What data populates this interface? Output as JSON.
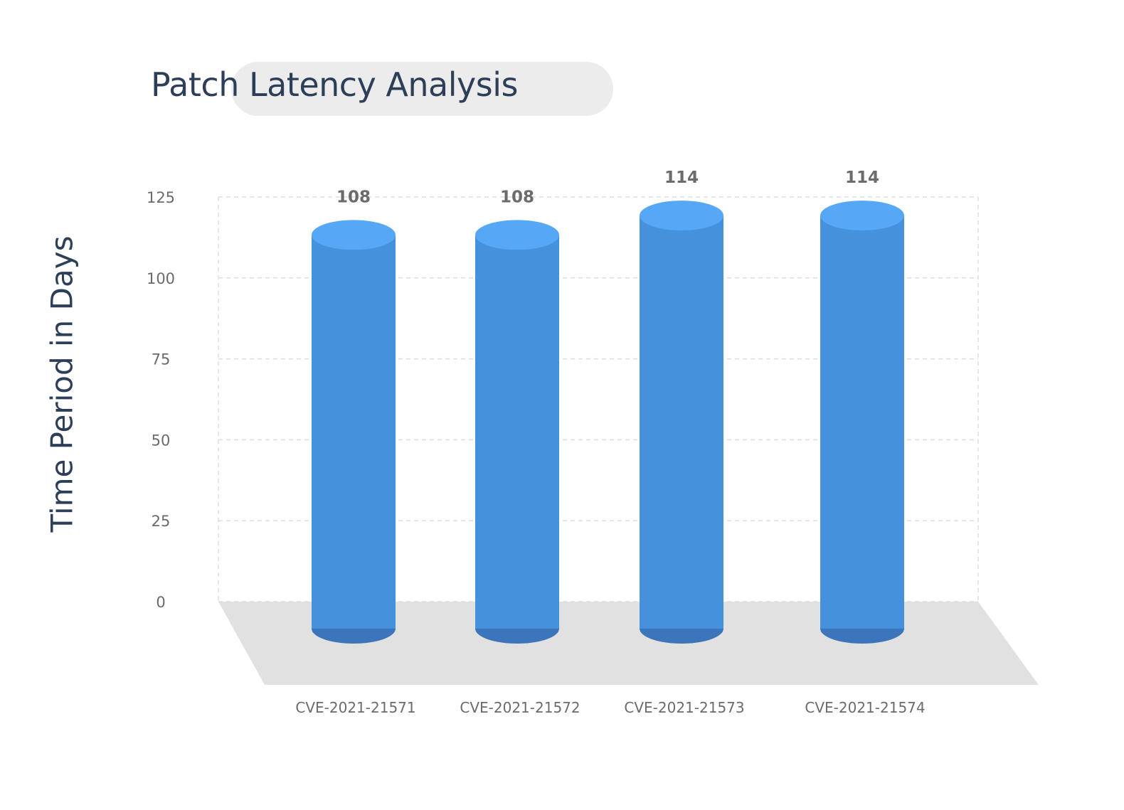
{
  "chart_data": {
    "type": "bar",
    "title": "Patch Latency Analysis",
    "xlabel": "",
    "ylabel": "Time Period in Days",
    "categories": [
      "CVE-2021-21571",
      "CVE-2021-21572",
      "CVE-2021-21573",
      "CVE-2021-21574"
    ],
    "values": [
      108,
      108,
      114,
      114
    ],
    "value_labels": [
      "108",
      "108",
      "114",
      "114"
    ],
    "yticks": [
      0,
      25,
      50,
      75,
      100,
      125
    ],
    "ylim": [
      0,
      125
    ],
    "grid": true,
    "bar_style": "3d-cylinder",
    "colors": {
      "bar_body": "#4591dc",
      "bar_top": "#56a7f6",
      "bar_bottom": "#3c75b9",
      "floor": "#e1e1e1",
      "grid": "#dddddd",
      "title": "#2d3f58",
      "tick_text": "#6b6b6b",
      "value_label": "#6b6b6b"
    }
  }
}
